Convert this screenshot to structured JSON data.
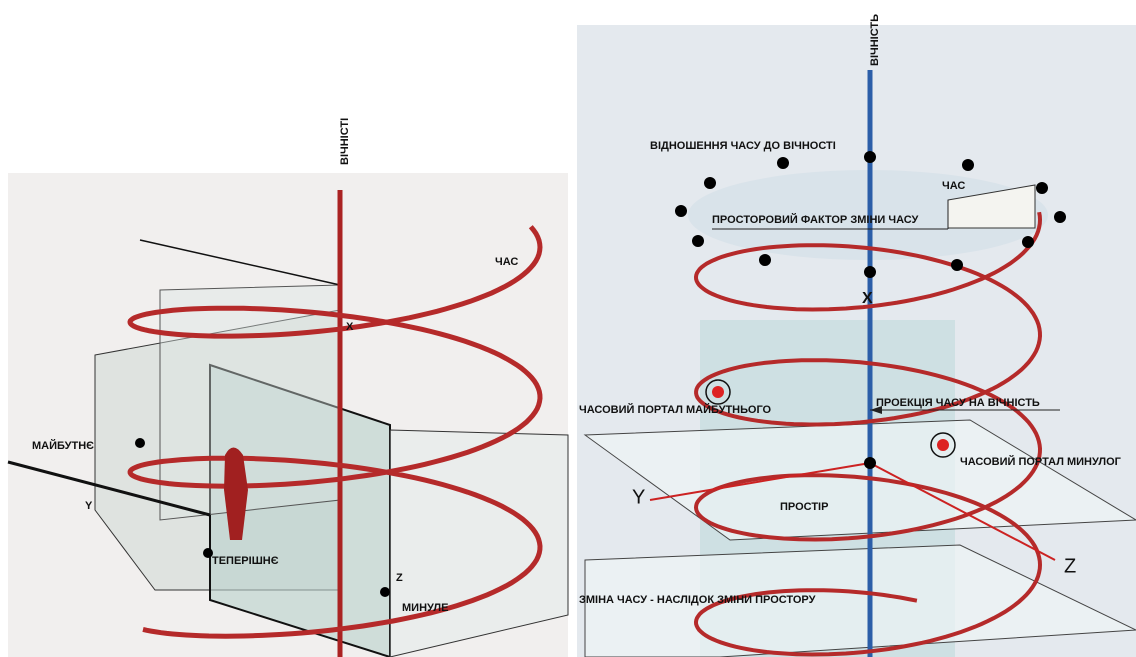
{
  "left_diagram": {
    "labels": [
      "ВІЧНІСТІ",
      "ЧАС",
      "Х",
      "МАЙБУТНЄ",
      "Y",
      "ТЕПЕРІШНЄ",
      "Z",
      "МИНУЛЕ"
    ]
  },
  "right_diagram": {
    "labels": [
      "ВІЧНІСТЬ",
      "ВІДНОШЕННЯ ЧАСУ ДО ВІЧНОСТІ",
      "ЧАС",
      "ПРОСТОРОВИЙ ФАКТОР ЗМІНИ ЧАСУ",
      "X",
      "ЧАСОВИЙ ПОРТАЛ МАЙБУТНЬОГО",
      "ПРОЕКЦІЯ ЧАСУ НА ВІЧНІСТЬ",
      "ЧАСОВИЙ ПОРТАЛ МИНУЛОГ",
      "Y",
      "ПРОСТІР",
      "Z",
      "ЗМІНА ЧАСУ - НАСЛІДОК ЗМІНИ ПРОСТОРУ"
    ]
  }
}
